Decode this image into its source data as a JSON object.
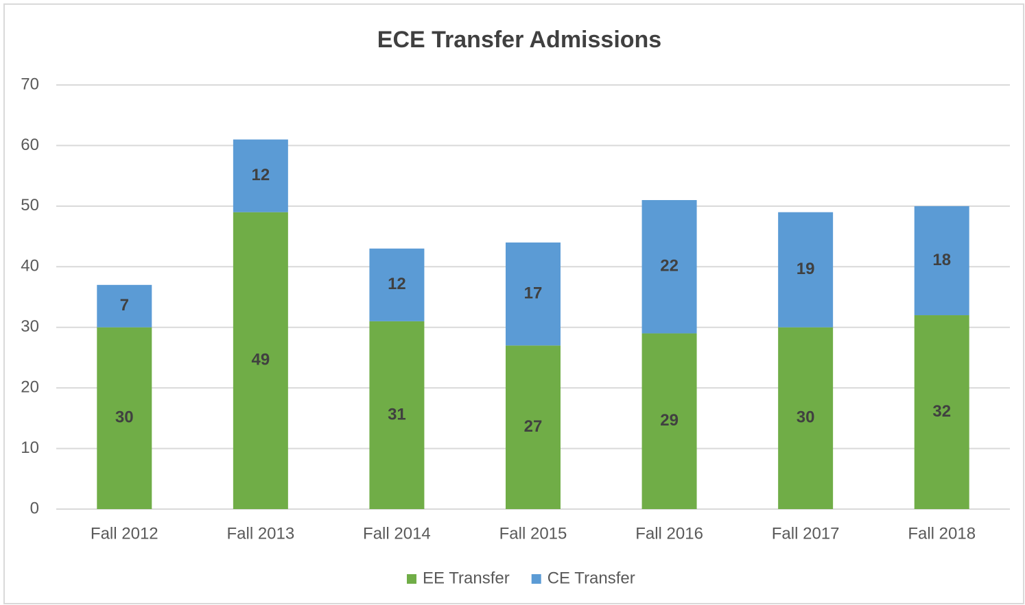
{
  "chart_data": {
    "type": "stacked_bar",
    "title": "ECE Transfer Admissions",
    "categories": [
      "Fall 2012",
      "Fall 2013",
      "Fall 2014",
      "Fall 2015",
      "Fall 2016",
      "Fall 2017",
      "Fall 2018"
    ],
    "series": [
      {
        "name": "EE Transfer",
        "color": "#70ad47",
        "values": [
          30,
          49,
          31,
          27,
          29,
          30,
          32
        ]
      },
      {
        "name": "CE Transfer",
        "color": "#5b9bd5",
        "values": [
          7,
          12,
          12,
          17,
          22,
          19,
          18
        ]
      }
    ],
    "ylim": [
      0,
      70
    ],
    "yticks": [
      0,
      10,
      20,
      30,
      40,
      50,
      60,
      70
    ],
    "grid": true,
    "legend": "bottom"
  }
}
